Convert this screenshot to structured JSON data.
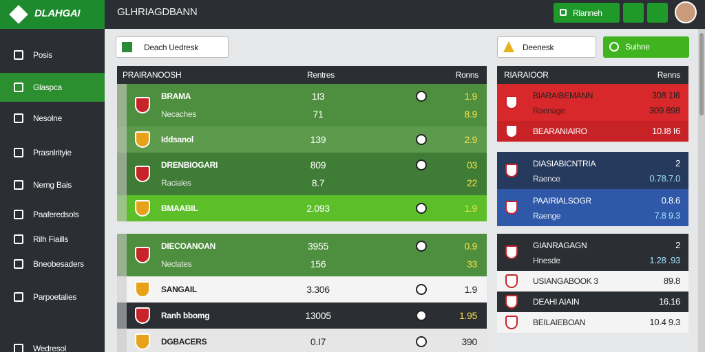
{
  "header": {
    "logo": "DLAHGAI",
    "title": "GLHRIAGDBANN",
    "button": "Rlanneh"
  },
  "sidebar": {
    "items": [
      "Posis",
      "Glaspca",
      "Nesolne",
      "Prasnlrityie",
      "Nemg Bais",
      "Paaferedsols",
      "Rilh Fiaills",
      "Bneobesaders",
      "Parpoetalies",
      "Wedresol"
    ]
  },
  "filters": {
    "left": "Deach Uedresk",
    "right": "Deenesk",
    "button": "Suihne"
  },
  "left_table": {
    "header": [
      "PRAIRANOOSH",
      "Rentres",
      "Ronns"
    ],
    "panels": [
      {
        "rows": [
          {
            "color": "#4e8f3f",
            "name": "BRAMA",
            "sub": "Necaches",
            "value": "1I3",
            "value2": "71",
            "score": "1.9",
            "score2": "8.9"
          },
          {
            "color": "#5b9b4b",
            "name": "Iddsanol",
            "value": "139",
            "score": "2.9"
          },
          {
            "color": "#3f7c36",
            "name": "DRENBIOGARI",
            "sub": "Raciales",
            "value": "809",
            "value2": "8.7",
            "score": "03",
            "score2": "22"
          },
          {
            "color": "#5cbf2a",
            "name": "BMAABIL",
            "value": "2.093",
            "score": "1.9"
          }
        ]
      },
      {
        "rows": [
          {
            "color": "#4e8f3f",
            "name": "DIECOANOAN",
            "sub": "Neclates",
            "value": "3955",
            "value2": "156",
            "score": "0.9",
            "score2": "33"
          },
          {
            "color": "#f4f4f4",
            "name": "SANGAIL",
            "value": "3.306",
            "score": "1.9"
          },
          {
            "color": "#2b2e33",
            "name": "Ranh bbomg",
            "value": "13005",
            "score": "1.95"
          },
          {
            "color": "#e6e6e6",
            "name": "DGBACERS",
            "value": "0.I7",
            "score": "390"
          }
        ]
      }
    ]
  },
  "right_table": {
    "header": [
      "RIARAIOOR",
      "Renns"
    ],
    "panels": [
      {
        "rows": [
          {
            "color": "#d8282b",
            "name": "BIARAIBEMANN",
            "sub": "Raenage",
            "value": "308 1I6",
            "value2": "309 898"
          },
          {
            "color": "#c72226",
            "name": "BEARANIAIRO",
            "value": "10.I8 I6"
          }
        ]
      },
      {
        "rows": [
          {
            "color": "#253a5c",
            "name": "DIASIABICNTRIA",
            "sub": "Raence",
            "value": "2",
            "value2": "0.78.7.0"
          },
          {
            "color": "#2f58a8",
            "name": "PAAIRIALSOGR",
            "sub": "Raenge",
            "value": "0.8.6",
            "value2": "7.8 9.3"
          }
        ]
      },
      {
        "rows": [
          {
            "color": "#2b2e33",
            "name": "GIANRAGAGN",
            "sub": "Hnesde",
            "value": "2",
            "value2": "1.28 .93"
          },
          {
            "color": "#f4f4f4",
            "name": "USIANGABOOK 3",
            "value": "89.8"
          },
          {
            "color": "#2b2e33",
            "name": "DEAHI AIAIN",
            "value": "16.16"
          },
          {
            "color": "#f4f4f4",
            "name": "BEILAIEBOAN",
            "value": "10.4 9.3"
          }
        ]
      }
    ]
  }
}
